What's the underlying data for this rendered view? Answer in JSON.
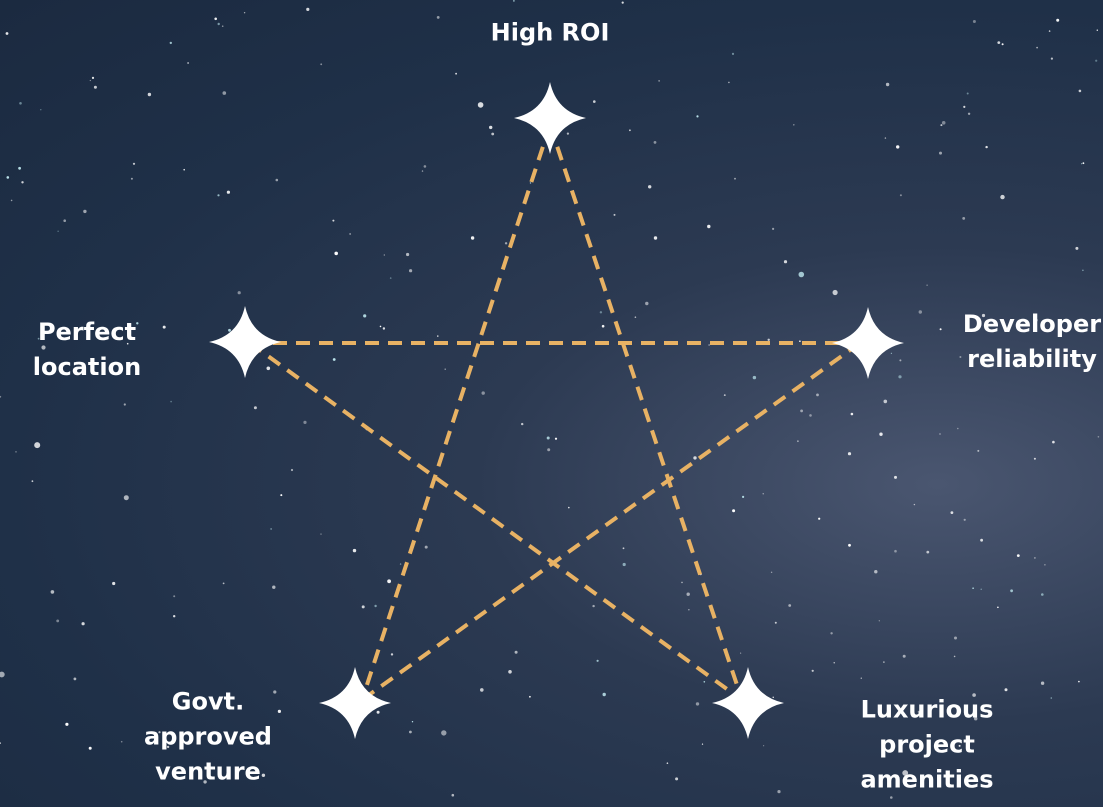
{
  "nodes": [
    {
      "label": "High ROI"
    },
    {
      "label": "Perfect location"
    },
    {
      "label": "Developer reliability"
    },
    {
      "label": "Govt. approved venture"
    },
    {
      "label": "Luxurious project amenities"
    }
  ]
}
